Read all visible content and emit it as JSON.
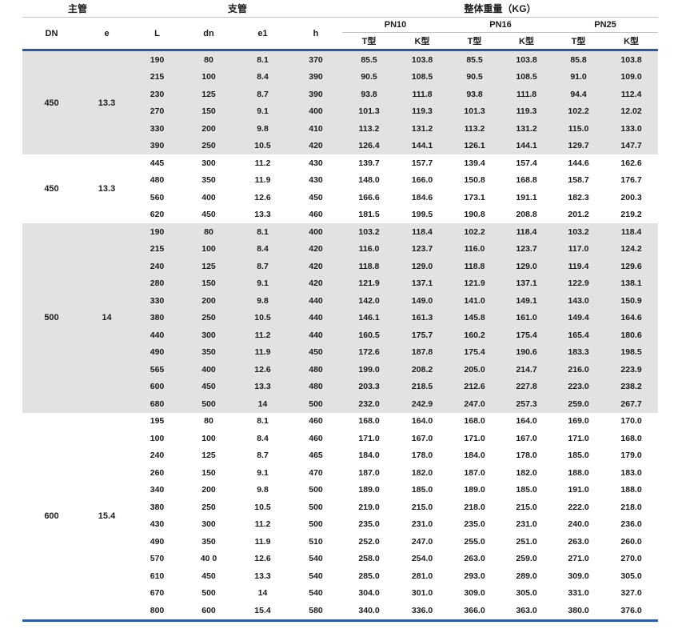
{
  "colors": {
    "accent_blue": "#2b5ba2",
    "band_gray": "#e3e2e0",
    "rule_gray": "#bfbfbf",
    "text": "#1b1b1b"
  },
  "table": {
    "header": {
      "group_main": "主管",
      "group_branch": "支管",
      "group_weight": "整体重量（KG）",
      "col_dn": "DN",
      "col_e": "e",
      "col_l": "L",
      "col_dn_small": "dn",
      "col_e1": "e1",
      "col_h": "h",
      "pn_groups": [
        "PN10",
        "PN16",
        "PN25"
      ],
      "type_t": "T型",
      "type_k": "K型"
    },
    "groups": [
      {
        "dn": "450",
        "e": "13.3",
        "shaded": true,
        "rows": [
          [
            "190",
            "80",
            "8.1",
            "370",
            "85.5",
            "103.8",
            "85.5",
            "103.8",
            "85.8",
            "103.8"
          ],
          [
            "215",
            "100",
            "8.4",
            "390",
            "90.5",
            "108.5",
            "90.5",
            "108.5",
            "91.0",
            "109.0"
          ],
          [
            "230",
            "125",
            "8.7",
            "390",
            "93.8",
            "111.8",
            "93.8",
            "111.8",
            "94.4",
            "112.4"
          ],
          [
            "270",
            "150",
            "9.1",
            "400",
            "101.3",
            "119.3",
            "101.3",
            "119.3",
            "102.2",
            "12.02"
          ],
          [
            "330",
            "200",
            "9.8",
            "410",
            "113.2",
            "131.2",
            "113.2",
            "131.2",
            "115.0",
            "133.0"
          ],
          [
            "390",
            "250",
            "10.5",
            "420",
            "126.4",
            "144.1",
            "126.1",
            "144.1",
            "129.7",
            "147.7"
          ]
        ]
      },
      {
        "dn": "450",
        "e": "13.3",
        "shaded": false,
        "rows": [
          [
            "445",
            "300",
            "11.2",
            "430",
            "139.7",
            "157.7",
            "139.4",
            "157.4",
            "144.6",
            "162.6"
          ],
          [
            "480",
            "350",
            "11.9",
            "430",
            "148.0",
            "166.0",
            "150.8",
            "168.8",
            "158.7",
            "176.7"
          ],
          [
            "560",
            "400",
            "12.6",
            "450",
            "166.6",
            "184.6",
            "173.1",
            "191.1",
            "182.3",
            "200.3"
          ],
          [
            "620",
            "450",
            "13.3",
            "460",
            "181.5",
            "199.5",
            "190.8",
            "208.8",
            "201.2",
            "219.2"
          ]
        ]
      },
      {
        "dn": "500",
        "e": "14",
        "shaded": true,
        "rows": [
          [
            "190",
            "80",
            "8.1",
            "400",
            "103.2",
            "118.4",
            "102.2",
            "118.4",
            "103.2",
            "118.4"
          ],
          [
            "215",
            "100",
            "8.4",
            "420",
            "116.0",
            "123.7",
            "116.0",
            "123.7",
            "117.0",
            "124.2"
          ],
          [
            "240",
            "125",
            "8.7",
            "420",
            "118.8",
            "129.0",
            "118.8",
            "129.0",
            "119.4",
            "129.6"
          ],
          [
            "280",
            "150",
            "9.1",
            "420",
            "121.9",
            "137.1",
            "121.9",
            "137.1",
            "122.9",
            "138.1"
          ],
          [
            "330",
            "200",
            "9.8",
            "440",
            "142.0",
            "149.0",
            "141.0",
            "149.1",
            "143.0",
            "150.9"
          ],
          [
            "380",
            "250",
            "10.5",
            "440",
            "146.1",
            "161.3",
            "145.8",
            "161.0",
            "149.4",
            "164.6"
          ],
          [
            "440",
            "300",
            "11.2",
            "440",
            "160.5",
            "175.7",
            "160.2",
            "175.4",
            "165.4",
            "180.6"
          ],
          [
            "490",
            "350",
            "11.9",
            "450",
            "172.6",
            "187.8",
            "175.4",
            "190.6",
            "183.3",
            "198.5"
          ],
          [
            "565",
            "400",
            "12.6",
            "480",
            "199.0",
            "208.2",
            "205.0",
            "214.7",
            "216.0",
            "223.9"
          ],
          [
            "600",
            "450",
            "13.3",
            "480",
            "203.3",
            "218.5",
            "212.6",
            "227.8",
            "223.0",
            "238.2"
          ],
          [
            "680",
            "500",
            "14",
            "500",
            "232.0",
            "242.9",
            "247.0",
            "257.3",
            "259.0",
            "267.7"
          ]
        ]
      },
      {
        "dn": "600",
        "e": "15.4",
        "shaded": false,
        "rows": [
          [
            "195",
            "80",
            "8.1",
            "460",
            "168.0",
            "164.0",
            "168.0",
            "164.0",
            "169.0",
            "170.0"
          ],
          [
            "100",
            "100",
            "8.4",
            "460",
            "171.0",
            "167.0",
            "171.0",
            "167.0",
            "171.0",
            "168.0"
          ],
          [
            "240",
            "125",
            "8.7",
            "465",
            "184.0",
            "178.0",
            "184.0",
            "178.0",
            "185.0",
            "179.0"
          ],
          [
            "260",
            "150",
            "9.1",
            "470",
            "187.0",
            "182.0",
            "187.0",
            "182.0",
            "188.0",
            "183.0"
          ],
          [
            "340",
            "200",
            "9.8",
            "500",
            "189.0",
            "185.0",
            "189.0",
            "185.0",
            "191.0",
            "188.0"
          ],
          [
            "380",
            "250",
            "10.5",
            "500",
            "219.0",
            "215.0",
            "218.0",
            "215.0",
            "222.0",
            "218.0"
          ],
          [
            "430",
            "300",
            "11.2",
            "500",
            "235.0",
            "231.0",
            "235.0",
            "231.0",
            "240.0",
            "236.0"
          ],
          [
            "490",
            "350",
            "11.9",
            "510",
            "252.0",
            "247.0",
            "255.0",
            "251.0",
            "263.0",
            "260.0"
          ],
          [
            "570",
            "40 0",
            "12.6",
            "540",
            "258.0",
            "254.0",
            "263.0",
            "259.0",
            "271.0",
            "270.0"
          ],
          [
            "610",
            "450",
            "13.3",
            "540",
            "285.0",
            "281.0",
            "293.0",
            "289.0",
            "309.0",
            "305.0"
          ],
          [
            "670",
            "500",
            "14",
            "540",
            "304.0",
            "301.0",
            "309.0",
            "305.0",
            "331.0",
            "327.0"
          ],
          [
            "800",
            "600",
            "15.4",
            "580",
            "340.0",
            "336.0",
            "366.0",
            "363.0",
            "380.0",
            "376.0"
          ]
        ]
      }
    ]
  }
}
